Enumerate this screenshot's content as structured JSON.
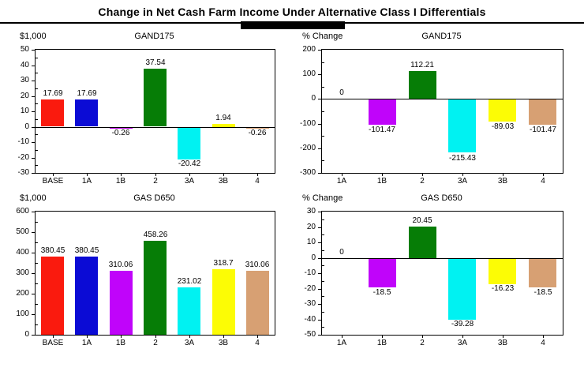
{
  "header": {
    "title": "Change in Net Cash Farm Income Under Alternative Class I Differentials"
  },
  "palette": {
    "base": "#fa1a0e",
    "alt_1a": "#0b0bd5",
    "alt_1b": "#c004fa",
    "alt_2": "#067d06",
    "alt_3a": "#00f2f2",
    "alt_3b": "#fcfc05",
    "alt_4": "#d7a073",
    "axis": "#000000",
    "background": "#ffffff"
  },
  "chart_data": [
    {
      "type": "bar",
      "title": "GAND175",
      "ylabel": "$1,000",
      "xlabel": "",
      "categories": [
        "BASE",
        "1A",
        "1B",
        "2",
        "3A",
        "3B",
        "4"
      ],
      "values": [
        17.69,
        17.69,
        -0.26,
        37.54,
        -20.42,
        1.94,
        -0.26
      ],
      "value_labels": [
        "17.69",
        "17.69",
        "-0.26",
        "37.54",
        "-20.42",
        "1.94",
        "-0.26"
      ],
      "colors": [
        "#fa1a0e",
        "#0b0bd5",
        "#c004fa",
        "#067d06",
        "#00f2f2",
        "#fcfc05",
        "#d7a073"
      ],
      "ylim": [
        -30,
        50
      ],
      "ytick_step": 10,
      "grid": false,
      "legend": "none"
    },
    {
      "type": "bar",
      "title": "GAND175",
      "ylabel": "% Change",
      "xlabel": "",
      "categories": [
        "1A",
        "1B",
        "2",
        "3A",
        "3B",
        "4"
      ],
      "values": [
        0,
        -101.47,
        112.21,
        -215.43,
        -89.03,
        -101.47
      ],
      "value_labels": [
        "0",
        "-101.47",
        "112.21",
        "-215.43",
        "-89.03",
        "-101.47"
      ],
      "colors": [
        "#0b0bd5",
        "#c004fa",
        "#067d06",
        "#00f2f2",
        "#fcfc05",
        "#d7a073"
      ],
      "ylim": [
        -300,
        200
      ],
      "ytick_step": 100,
      "grid": false,
      "legend": "none"
    },
    {
      "type": "bar",
      "title": "GAS D650",
      "ylabel": "$1,000",
      "xlabel": "",
      "categories": [
        "BASE",
        "1A",
        "1B",
        "2",
        "3A",
        "3B",
        "4"
      ],
      "values": [
        380.45,
        380.45,
        310.06,
        458.26,
        231.02,
        318.7,
        310.06
      ],
      "value_labels": [
        "380.45",
        "380.45",
        "310.06",
        "458.26",
        "231.02",
        "318.7",
        "310.06"
      ],
      "colors": [
        "#fa1a0e",
        "#0b0bd5",
        "#c004fa",
        "#067d06",
        "#00f2f2",
        "#fcfc05",
        "#d7a073"
      ],
      "ylim": [
        0,
        600
      ],
      "ytick_step": 100,
      "grid": false,
      "legend": "none"
    },
    {
      "type": "bar",
      "title": "GAS D650",
      "ylabel": "% Change",
      "xlabel": "",
      "categories": [
        "1A",
        "1B",
        "2",
        "3A",
        "3B",
        "4"
      ],
      "values": [
        0,
        -18.5,
        20.45,
        -39.28,
        -16.23,
        -18.5
      ],
      "value_labels": [
        "0",
        "-18.5",
        "20.45",
        "-39.28",
        "-16.23",
        "-18.5"
      ],
      "colors": [
        "#0b0bd5",
        "#c004fa",
        "#067d06",
        "#00f2f2",
        "#fcfc05",
        "#d7a073"
      ],
      "ylim": [
        -50,
        30
      ],
      "ytick_step": 10,
      "grid": false,
      "legend": "none"
    }
  ]
}
